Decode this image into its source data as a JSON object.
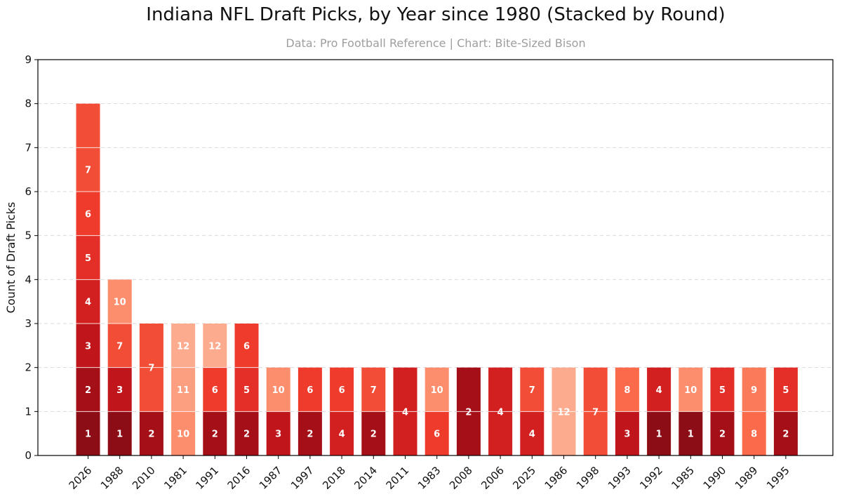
{
  "colors": {
    "r1": "#8c0d15",
    "r2": "#a50f18",
    "r3": "#bf151b",
    "r4": "#d21f20",
    "r5": "#e32f27",
    "r6": "#ef3b2c",
    "r7": "#f14d37",
    "r8": "#fb6a4a",
    "r9": "#fb7a5a",
    "r10": "#fc8d6d",
    "r11": "#fc9f80",
    "r12": "#fcab8f",
    "grid": "#d9d9d9",
    "axis": "#000000"
  },
  "chart_data": {
    "type": "bar",
    "stacked": true,
    "title": "Indiana NFL Draft Picks, by Year since 1980 (Stacked by Round)",
    "subtitle": "Data: Pro Football Reference | Chart: Bite-Sized Bison",
    "xlabel": "",
    "ylabel": "Count of Draft Picks",
    "ylim": [
      0,
      9
    ],
    "yticks": [
      "0",
      "1",
      "2",
      "3",
      "4",
      "5",
      "6",
      "7",
      "8",
      "9"
    ],
    "grid": "horizontal dashed",
    "legend": "none",
    "categories": [
      "2026",
      "1988",
      "2010",
      "1981",
      "1991",
      "2016",
      "1987",
      "1997",
      "2018",
      "2014",
      "2011",
      "1983",
      "2008",
      "2006",
      "2025",
      "1986",
      "1998",
      "1993",
      "1992",
      "1985",
      "1990",
      "1989",
      "1995"
    ],
    "rounds": [
      [
        1,
        2,
        3,
        4,
        5,
        6,
        7,
        7
      ],
      [
        1,
        3,
        7,
        10
      ],
      [
        2,
        7,
        7
      ],
      [
        10,
        11,
        12
      ],
      [
        2,
        6,
        12
      ],
      [
        2,
        5,
        6
      ],
      [
        3,
        10
      ],
      [
        2,
        6
      ],
      [
        4,
        6
      ],
      [
        2,
        7
      ],
      [
        4,
        4
      ],
      [
        6,
        10
      ],
      [
        2,
        2
      ],
      [
        4,
        4
      ],
      [
        4,
        7
      ],
      [
        12,
        12
      ],
      [
        7,
        7
      ],
      [
        3,
        8
      ],
      [
        1,
        4
      ],
      [
        1,
        10
      ],
      [
        2,
        5
      ],
      [
        8,
        9
      ],
      [
        2,
        5
      ]
    ],
    "segment_labels": [
      [
        "1",
        "2",
        "3",
        "4",
        "5",
        "6",
        "7",
        ""
      ],
      [
        "1",
        "3",
        "7",
        "10"
      ],
      [
        "2",
        "7",
        ""
      ],
      [
        "10",
        "11",
        "12"
      ],
      [
        "2",
        "6",
        "12"
      ],
      [
        "2",
        "5",
        "6"
      ],
      [
        "3",
        "10"
      ],
      [
        "2",
        "6"
      ],
      [
        "4",
        "6"
      ],
      [
        "2",
        "7"
      ],
      [
        "4",
        ""
      ],
      [
        "6",
        "10"
      ],
      [
        "2",
        ""
      ],
      [
        "4",
        ""
      ],
      [
        "4",
        "7"
      ],
      [
        "12",
        ""
      ],
      [
        "7",
        ""
      ],
      [
        "3",
        "8"
      ],
      [
        "1",
        "4"
      ],
      [
        "1",
        "10"
      ],
      [
        "2",
        "5"
      ],
      [
        "8",
        "9"
      ],
      [
        "2",
        "5"
      ]
    ]
  }
}
